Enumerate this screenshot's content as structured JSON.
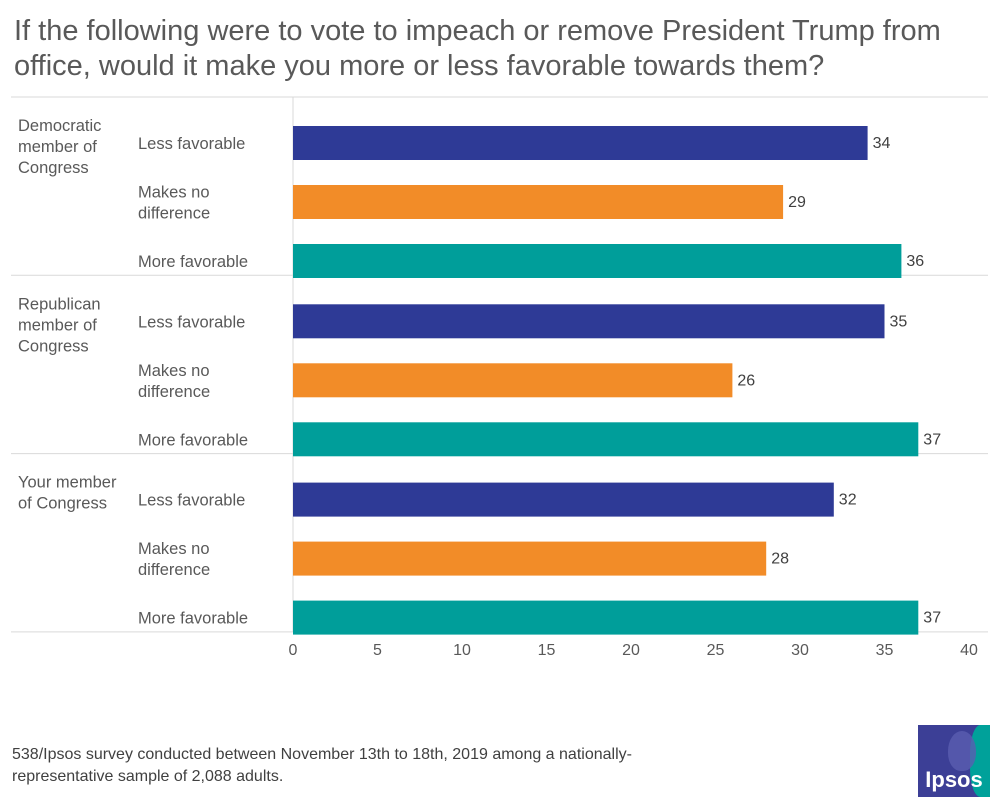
{
  "title": "If the following were to vote to impeach or remove President Trump from office, would it make you more or less favorable towards them?",
  "footnote": "538/Ipsos survey conducted between November 13th to 18th, 2019 among a nationally-representative sample of 2,088 adults.",
  "logo_text": "Ipsos",
  "colors": {
    "Less favorable": "#2e3a96",
    "Makes no difference": "#f28c28",
    "More favorable": "#009e9a",
    "grid": "#d9d9d9",
    "text": "#595959"
  },
  "chart_data": {
    "type": "bar",
    "orientation": "horizontal",
    "title": "If the following were to vote to impeach or remove President Trump from office, would it make you more or less favorable towards them?",
    "xlabel": "",
    "ylabel": "",
    "xlim": [
      0,
      40
    ],
    "x_ticks": [
      0,
      5,
      10,
      15,
      20,
      25,
      30,
      35,
      40
    ],
    "series_names": [
      "Less favorable",
      "Makes no difference",
      "More favorable"
    ],
    "groups": [
      {
        "label": "Democratic member of Congress",
        "label_lines": [
          "Democratic",
          "member of",
          "Congress"
        ],
        "bars": [
          {
            "category": "Less favorable",
            "label_lines": [
              "Less favorable"
            ],
            "value": 34
          },
          {
            "category": "Makes no difference",
            "label_lines": [
              "Makes no",
              "difference"
            ],
            "value": 29
          },
          {
            "category": "More favorable",
            "label_lines": [
              "More favorable"
            ],
            "value": 36
          }
        ]
      },
      {
        "label": "Republican member of Congress",
        "label_lines": [
          "Republican",
          "member of",
          "Congress"
        ],
        "bars": [
          {
            "category": "Less favorable",
            "label_lines": [
              "Less favorable"
            ],
            "value": 35
          },
          {
            "category": "Makes no difference",
            "label_lines": [
              "Makes no",
              "difference"
            ],
            "value": 26
          },
          {
            "category": "More favorable",
            "label_lines": [
              "More favorable"
            ],
            "value": 37
          }
        ]
      },
      {
        "label": "Your member of Congress",
        "label_lines": [
          "Your member",
          "of Congress"
        ],
        "bars": [
          {
            "category": "Less favorable",
            "label_lines": [
              "Less favorable"
            ],
            "value": 32
          },
          {
            "category": "Makes no difference",
            "label_lines": [
              "Makes no",
              "difference"
            ],
            "value": 28
          },
          {
            "category": "More favorable",
            "label_lines": [
              "More favorable"
            ],
            "value": 37
          }
        ]
      }
    ]
  }
}
